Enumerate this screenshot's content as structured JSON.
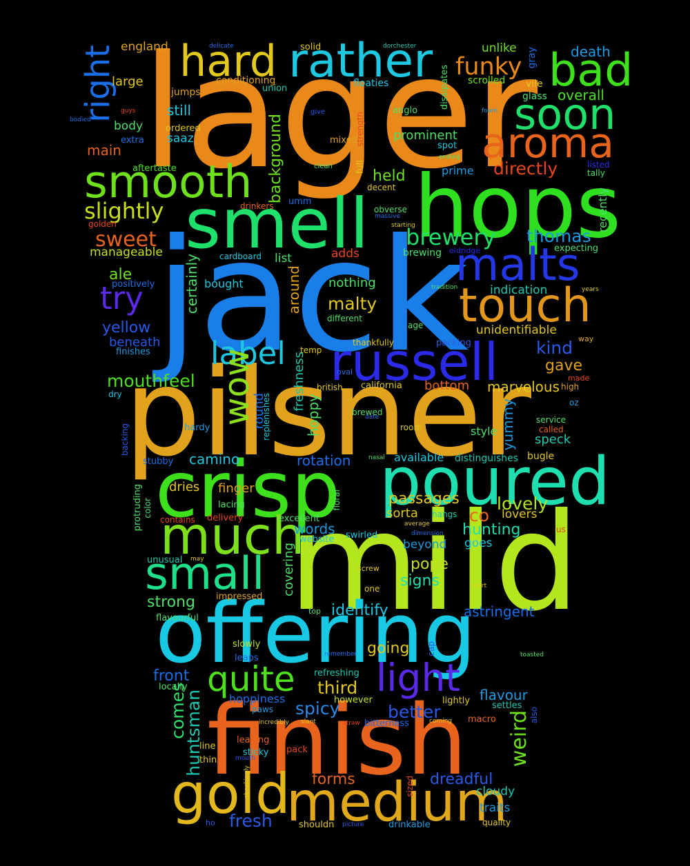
{
  "words": [
    {
      "text": "lager",
      "color": "#e8891a",
      "vertical": false
    },
    {
      "text": "jack",
      "color": "#1a7ee8",
      "vertical": false
    },
    {
      "text": "pilsner",
      "color": "#e2a31c",
      "vertical": false
    },
    {
      "text": "mild",
      "color": "#b4e61e",
      "vertical": false
    },
    {
      "text": "offering",
      "color": "#17c9e3",
      "vertical": false
    },
    {
      "text": "finish",
      "color": "#e8641d",
      "vertical": false
    },
    {
      "text": "hops",
      "color": "#2ee01f",
      "vertical": false
    },
    {
      "text": "smell",
      "color": "#1ee06a",
      "vertical": false
    },
    {
      "text": "crisp",
      "color": "#3ee01c",
      "vertical": false
    },
    {
      "text": "poured",
      "color": "#1edfb0",
      "vertical": false
    },
    {
      "text": "medium",
      "color": "#e2a81c",
      "vertical": false
    },
    {
      "text": "russell",
      "color": "#2a2ae8",
      "vertical": false
    },
    {
      "text": "gold",
      "color": "#e2b81c",
      "vertical": false
    },
    {
      "text": "much",
      "color": "#7ee01c",
      "vertical": false
    },
    {
      "text": "small",
      "color": "#1edf8a",
      "vertical": false
    },
    {
      "text": "smooth",
      "color": "#6fe01c",
      "vertical": false
    },
    {
      "text": "touch",
      "color": "#e2961c",
      "vertical": false
    },
    {
      "text": "malts",
      "color": "#2438e8",
      "vertical": false
    },
    {
      "text": "rather",
      "color": "#1ec8e0",
      "vertical": false
    },
    {
      "text": "bad",
      "color": "#3ee01c",
      "vertical": false
    },
    {
      "text": "aroma",
      "color": "#e8641d",
      "vertical": false
    },
    {
      "text": "soon",
      "color": "#1ee06a",
      "vertical": false
    },
    {
      "text": "hard",
      "color": "#e2c81c",
      "vertical": false
    },
    {
      "text": "quite",
      "color": "#4ee01c",
      "vertical": false
    },
    {
      "text": "light",
      "color": "#5a2ae8",
      "vertical": false
    },
    {
      "text": "label",
      "color": "#1ec8e0",
      "vertical": false
    },
    {
      "text": "try",
      "color": "#5a2ae8",
      "vertical": false
    },
    {
      "text": "wow",
      "color": "#8ee01c",
      "vertical": false
    },
    {
      "text": "right",
      "color": "#1a6ee8",
      "vertical": true
    },
    {
      "text": "funky",
      "color": "#e8891a",
      "vertical": false
    },
    {
      "text": "brewery",
      "color": "#1ee06a",
      "vertical": false
    },
    {
      "text": "slightly",
      "color": "#c8e01c",
      "vertical": false
    },
    {
      "text": "sweet",
      "color": "#e8641d",
      "vertical": false
    },
    {
      "text": "directly",
      "color": "#e8461d",
      "vertical": false
    },
    {
      "text": "thomas",
      "color": "#1e9ae0",
      "vertical": false
    },
    {
      "text": "malty",
      "color": "#e2c81c",
      "vertical": false
    },
    {
      "text": "mouthfeel",
      "color": "#4ee01c",
      "vertical": false
    },
    {
      "text": "weird",
      "color": "#6ee01c",
      "vertical": true
    },
    {
      "text": "comes",
      "color": "#2ee06a",
      "vertical": true
    },
    {
      "text": "huntsman",
      "color": "#1ec8b0",
      "vertical": true
    },
    {
      "text": "kind",
      "color": "#2a5ae8",
      "vertical": false
    },
    {
      "text": "gave",
      "color": "#e2a31c",
      "vertical": false
    },
    {
      "text": "lovely",
      "color": "#b4e61e",
      "vertical": false
    },
    {
      "text": "hunting",
      "color": "#1edfb0",
      "vertical": false
    },
    {
      "text": "signs",
      "color": "#1edfb0",
      "vertical": false
    },
    {
      "text": "pope",
      "color": "#c8e01c",
      "vertical": false
    },
    {
      "text": "strong",
      "color": "#4ee06a",
      "vertical": false
    },
    {
      "text": "identify",
      "color": "#1ec8e0",
      "vertical": false
    },
    {
      "text": "astringent",
      "color": "#1a6ee8",
      "vertical": false
    },
    {
      "text": "third",
      "color": "#e2c81c",
      "vertical": false
    },
    {
      "text": "spicy",
      "color": "#2a8ae8",
      "vertical": false
    },
    {
      "text": "better",
      "color": "#2a5ae8",
      "vertical": false
    },
    {
      "text": "front",
      "color": "#1a6ee8",
      "vertical": false
    },
    {
      "text": "going",
      "color": "#e2c81c",
      "vertical": false
    },
    {
      "text": "flavour",
      "color": "#1e9ae0",
      "vertical": false
    },
    {
      "text": "dreadful",
      "color": "#2a5ae8",
      "vertical": false
    },
    {
      "text": "forms",
      "color": "#e8641d",
      "vertical": false
    },
    {
      "text": "fresh",
      "color": "#2a5ae8",
      "vertical": false
    },
    {
      "text": "camino",
      "color": "#1ec8e0",
      "vertical": false
    },
    {
      "text": "rotation",
      "color": "#1e6ee8",
      "vertical": false
    },
    {
      "text": "passages",
      "color": "#e2c81c",
      "vertical": false
    },
    {
      "text": "sorta",
      "color": "#e2c81c",
      "vertical": false
    },
    {
      "text": "co",
      "color": "#e8641d",
      "vertical": false
    },
    {
      "text": "words",
      "color": "#1e9ae0",
      "vertical": false
    },
    {
      "text": "yellow",
      "color": "#2a5ae8",
      "vertical": false
    },
    {
      "text": "ale",
      "color": "#6ee01c",
      "vertical": false
    },
    {
      "text": "held",
      "color": "#6ee01c",
      "vertical": false
    },
    {
      "text": "prominent",
      "color": "#4ee06a",
      "vertical": false
    },
    {
      "text": "main",
      "color": "#e8641d",
      "vertical": false
    },
    {
      "text": "still",
      "color": "#1ec8e0",
      "vertical": false
    },
    {
      "text": "england",
      "color": "#e2a31c",
      "vertical": false
    },
    {
      "text": "large",
      "color": "#e2c81c",
      "vertical": false
    },
    {
      "text": "overall",
      "color": "#4ee01c",
      "vertical": false
    },
    {
      "text": "death",
      "color": "#1e9ae0",
      "vertical": false
    },
    {
      "text": "unlike",
      "color": "#6ee01c",
      "vertical": false
    },
    {
      "text": "body",
      "color": "#4ee06a",
      "vertical": false
    },
    {
      "text": "saaz",
      "color": "#1ec8e0",
      "vertical": false
    },
    {
      "text": "dries",
      "color": "#e2c81c",
      "vertical": false
    },
    {
      "text": "finger",
      "color": "#e2a31c",
      "vertical": false
    },
    {
      "text": "yummy",
      "color": "#1e9ae0",
      "vertical": true
    },
    {
      "text": "marvelous",
      "color": "#e2c81c",
      "vertical": false
    },
    {
      "text": "bottom",
      "color": "#e8641d",
      "vertical": false
    },
    {
      "text": "speck",
      "color": "#1ec8b0",
      "vertical": false
    },
    {
      "text": "cloudy",
      "color": "#1ec8b0",
      "vertical": false
    },
    {
      "text": "traits",
      "color": "#1e9ae0",
      "vertical": false
    },
    {
      "text": "nothing",
      "color": "#4ee06a",
      "vertical": false
    },
    {
      "text": "around",
      "color": "#e2a31c",
      "vertical": true
    },
    {
      "text": "indication",
      "color": "#1ec8b0",
      "vertical": false
    },
    {
      "text": "unidentifiable",
      "color": "#e2c81c",
      "vertical": false
    },
    {
      "text": "beyond",
      "color": "#1e9ae0",
      "vertical": false
    },
    {
      "text": "goes",
      "color": "#1ec8e0",
      "vertical": false
    },
    {
      "text": "lovers",
      "color": "#e2c81c",
      "vertical": false
    },
    {
      "text": "hoppiness",
      "color": "#1e6ee8",
      "vertical": false
    },
    {
      "text": "bugle",
      "color": "#e2c81c",
      "vertical": false
    },
    {
      "text": "hoppy",
      "color": "#4ee06a",
      "vertical": true
    },
    {
      "text": "freshness",
      "color": "#1ec8b0",
      "vertical": true
    },
    {
      "text": "round",
      "color": "#1e6ee8",
      "vertical": true
    },
    {
      "text": "background",
      "color": "#6ee01c",
      "vertical": true
    },
    {
      "text": "certainly",
      "color": "#4ee06a",
      "vertical": true
    },
    {
      "text": "covering",
      "color": "#4ee06a",
      "vertical": true
    },
    {
      "text": "style",
      "color": "#4ee06a",
      "vertical": false
    },
    {
      "text": "manageable",
      "color": "#c8e01c",
      "vertical": false
    },
    {
      "text": "adds",
      "color": "#e8461d",
      "vertical": false
    },
    {
      "text": "list",
      "color": "#4ee06a",
      "vertical": false
    },
    {
      "text": "bought",
      "color": "#1ec8e0",
      "vertical": false
    },
    {
      "text": "beneath",
      "color": "#2a5ae8",
      "vertical": false
    },
    {
      "text": "prime",
      "color": "#1e9ae0",
      "vertical": false
    },
    {
      "text": "recently",
      "color": "#4ee06a",
      "vertical": true
    },
    {
      "text": "expecting",
      "color": "#4ee06a",
      "vertical": false
    },
    {
      "text": "brewing",
      "color": "#4ee06a",
      "vertical": false
    },
    {
      "text": "available",
      "color": "#1ec8e0",
      "vertical": false
    },
    {
      "text": "distinguishes",
      "color": "#1ec8b0",
      "vertical": false
    },
    {
      "text": "ordered",
      "color": "#e2c81c",
      "vertical": false
    },
    {
      "text": "conditioning",
      "color": "#e2a31c",
      "vertical": false
    },
    {
      "text": "solid",
      "color": "#e2c81c",
      "vertical": false
    },
    {
      "text": "floaties",
      "color": "#1ec8e0",
      "vertical": false
    },
    {
      "text": "scrolled",
      "color": "#6ee01c",
      "vertical": false
    },
    {
      "text": "glass",
      "color": "#4ee06a",
      "vertical": false
    },
    {
      "text": "vile",
      "color": "#e2c81c",
      "vertical": false
    },
    {
      "text": "jumps",
      "color": "#e2a31c",
      "vertical": false
    },
    {
      "text": "union",
      "color": "#1ec8b0",
      "vertical": false
    },
    {
      "text": "anglo",
      "color": "#4ee06a",
      "vertical": false
    },
    {
      "text": "mixed",
      "color": "#e2a31c",
      "vertical": false
    },
    {
      "text": "spot",
      "color": "#1ec8e0",
      "vertical": false
    },
    {
      "text": "extra",
      "color": "#1e6ee8",
      "vertical": false
    },
    {
      "text": "aftertaste",
      "color": "#4ee01c",
      "vertical": false
    },
    {
      "text": "umm",
      "color": "#1e6ee8",
      "vertical": false
    },
    {
      "text": "positively",
      "color": "#1e6ee8",
      "vertical": false
    },
    {
      "text": "finishes",
      "color": "#1e9ae0",
      "vertical": false
    },
    {
      "text": "hardy",
      "color": "#1e9ae0",
      "vertical": false
    },
    {
      "text": "stubby",
      "color": "#1e6ee8",
      "vertical": false
    },
    {
      "text": "lacing",
      "color": "#4ee06a",
      "vertical": false
    },
    {
      "text": "delivery",
      "color": "#e8461d",
      "vertical": false
    },
    {
      "text": "excellent",
      "color": "#4ee06a",
      "vertical": false
    },
    {
      "text": "website",
      "color": "#1ec8e0",
      "vertical": false
    },
    {
      "text": "swirled",
      "color": "#1ec8e0",
      "vertical": false
    },
    {
      "text": "unusual",
      "color": "#1ec8b0",
      "vertical": false
    },
    {
      "text": "impressed",
      "color": "#e2a31c",
      "vertical": false
    },
    {
      "text": "flavourful",
      "color": "#4ee06a",
      "vertical": false
    },
    {
      "text": "slowly",
      "color": "#c8e01c",
      "vertical": false
    },
    {
      "text": "leaps",
      "color": "#1e6ee8",
      "vertical": false
    },
    {
      "text": "refreshing",
      "color": "#1ec8b0",
      "vertical": false
    },
    {
      "text": "however",
      "color": "#c8e01c",
      "vertical": false
    },
    {
      "text": "lightly",
      "color": "#e2c81c",
      "vertical": false
    },
    {
      "text": "settles",
      "color": "#1ec8b0",
      "vertical": false
    },
    {
      "text": "macro",
      "color": "#e8641d",
      "vertical": false
    },
    {
      "text": "bitterness",
      "color": "#1e6ee8",
      "vertical": false
    },
    {
      "text": "locally",
      "color": "#4ee06a",
      "vertical": false
    },
    {
      "text": "paws",
      "color": "#1e9ae0",
      "vertical": false
    },
    {
      "text": "line",
      "color": "#e2c81c",
      "vertical": false
    },
    {
      "text": "thin",
      "color": "#e2c81c",
      "vertical": false
    },
    {
      "text": "leaving",
      "color": "#e8641d",
      "vertical": false
    },
    {
      "text": "sticky",
      "color": "#1ec8e0",
      "vertical": false
    },
    {
      "text": "pack",
      "color": "#e8461d",
      "vertical": false
    },
    {
      "text": "shouldn",
      "color": "#e2c81c",
      "vertical": false
    },
    {
      "text": "drinkable",
      "color": "#1e9ae0",
      "vertical": false
    },
    {
      "text": "quality",
      "color": "#e2c81c",
      "vertical": false
    },
    {
      "text": "temp",
      "color": "#e2c81c",
      "vertical": false
    },
    {
      "text": "thankfully",
      "color": "#e2c81c",
      "vertical": false
    },
    {
      "text": "packing",
      "color": "#2a5ae8",
      "vertical": false
    },
    {
      "text": "california",
      "color": "#e2c81c",
      "vertical": false
    },
    {
      "text": "british",
      "color": "#e2c81c",
      "vertical": false
    },
    {
      "text": "brewed",
      "color": "#4ee06a",
      "vertical": false
    },
    {
      "text": "room",
      "color": "#e2c81c",
      "vertical": false
    },
    {
      "text": "service",
      "color": "#4ee06a",
      "vertical": false
    },
    {
      "text": "called",
      "color": "#e8641d",
      "vertical": false
    },
    {
      "text": "high",
      "color": "#e2a31c",
      "vertical": false
    },
    {
      "text": "made",
      "color": "#e8461d",
      "vertical": false
    },
    {
      "text": "oz",
      "color": "#1e9ae0",
      "vertical": false
    },
    {
      "text": "way",
      "color": "#e2a31c",
      "vertical": false
    },
    {
      "text": "age",
      "color": "#4ee06a",
      "vertical": false
    },
    {
      "text": "different",
      "color": "#4ee06a",
      "vertical": false
    },
    {
      "text": "decent",
      "color": "#e2c81c",
      "vertical": false
    },
    {
      "text": "obverse",
      "color": "#4ee06a",
      "vertical": false
    },
    {
      "text": "cardboard",
      "color": "#1ec8e0",
      "vertical": false
    },
    {
      "text": "drinkers",
      "color": "#e8641d",
      "vertical": false
    },
    {
      "text": "golden",
      "color": "#e8461d",
      "vertical": false
    },
    {
      "text": "contains",
      "color": "#e8461d",
      "vertical": false
    },
    {
      "text": "hangs",
      "color": "#1ec8b0",
      "vertical": false
    },
    {
      "text": "screw",
      "color": "#e2c81c",
      "vertical": false
    },
    {
      "text": "one",
      "color": "#e2c81c",
      "vertical": false
    },
    {
      "text": "top",
      "color": "#4ee06a",
      "vertical": false
    },
    {
      "text": "give",
      "color": "#2a5ae8",
      "vertical": false
    },
    {
      "text": "clean",
      "color": "#4ee06a",
      "vertical": false
    },
    {
      "text": "massive",
      "color": "#1e6ee8",
      "vertical": false
    },
    {
      "text": "starting",
      "color": "#e2c81c",
      "vertical": false
    },
    {
      "text": "eldridge",
      "color": "#2a2ae8",
      "vertical": false
    },
    {
      "text": "tradition",
      "color": "#4ee06a",
      "vertical": false
    },
    {
      "text": "years",
      "color": "#e2c81c",
      "vertical": false
    },
    {
      "text": "listed",
      "color": "#2a2ae8",
      "vertical": false
    },
    {
      "text": "tally",
      "color": "#4ee06a",
      "vertical": false
    },
    {
      "text": "foam",
      "color": "#1e9ae0",
      "vertical": false
    },
    {
      "text": "ending",
      "color": "#4ee06a",
      "vertical": false
    },
    {
      "text": "guys",
      "color": "#e8461d",
      "vertical": false
    },
    {
      "text": "bodied",
      "color": "#1e6ee8",
      "vertical": false
    },
    {
      "text": "delicate",
      "color": "#1e6ee8",
      "vertical": false
    },
    {
      "text": "dorchester",
      "color": "#1ec8b0",
      "vertical": false
    },
    {
      "text": "dry",
      "color": "#1ec8e0",
      "vertical": false
    },
    {
      "text": "oval",
      "color": "#1e6ee8",
      "vertical": false
    },
    {
      "text": "date",
      "color": "#1e6ee8",
      "vertical": false
    },
    {
      "text": "nasal",
      "color": "#4ee06a",
      "vertical": false
    },
    {
      "text": "average",
      "color": "#e2c81c",
      "vertical": false
    },
    {
      "text": "dimension",
      "color": "#1e6ee8",
      "vertical": false
    },
    {
      "text": "us",
      "color": "#e8461d",
      "vertical": false
    },
    {
      "text": "may",
      "color": "#e2c81c",
      "vertical": false
    },
    {
      "text": "short",
      "color": "#e2c81c",
      "vertical": false
    },
    {
      "text": "remember",
      "color": "#1e6ee8",
      "vertical": false
    },
    {
      "text": "toasted",
      "color": "#4ee06a",
      "vertical": false
    },
    {
      "text": "incredibly",
      "color": "#e2c81c",
      "vertical": false
    },
    {
      "text": "slant",
      "color": "#e2c81c",
      "vertical": false
    },
    {
      "text": "straw",
      "color": "#e8461d",
      "vertical": false
    },
    {
      "text": "coming",
      "color": "#e2c81c",
      "vertical": false
    },
    {
      "text": "mouth",
      "color": "#2a5ae8",
      "vertical": false
    },
    {
      "text": "ho",
      "color": "#2a5ae8",
      "vertical": false
    },
    {
      "text": "picture",
      "color": "#2a5ae8",
      "vertical": false
    },
    {
      "text": "dissipates",
      "color": "#4ee06a",
      "vertical": true
    },
    {
      "text": "strength",
      "color": "#e8461d",
      "vertical": true
    },
    {
      "text": "full",
      "color": "#e2c81c",
      "vertical": true
    },
    {
      "text": "gray",
      "color": "#1e6ee8",
      "vertical": true
    },
    {
      "text": "backing",
      "color": "#2a5ae8",
      "vertical": true
    },
    {
      "text": "replenishes",
      "color": "#1ec8e0",
      "vertical": true
    },
    {
      "text": "protruding",
      "color": "#4ee06a",
      "vertical": true
    },
    {
      "text": "color",
      "color": "#4ee06a",
      "vertical": true
    },
    {
      "text": "floral",
      "color": "#4ee06a",
      "vertical": true
    },
    {
      "text": "cap",
      "color": "#2a5ae8",
      "vertical": true
    },
    {
      "text": "also",
      "color": "#2a5ae8",
      "vertical": true
    },
    {
      "text": "sized",
      "color": "#e8461d",
      "vertical": true
    },
    {
      "text": "shockingly",
      "color": "#e2c81c",
      "vertical": true
    }
  ]
}
